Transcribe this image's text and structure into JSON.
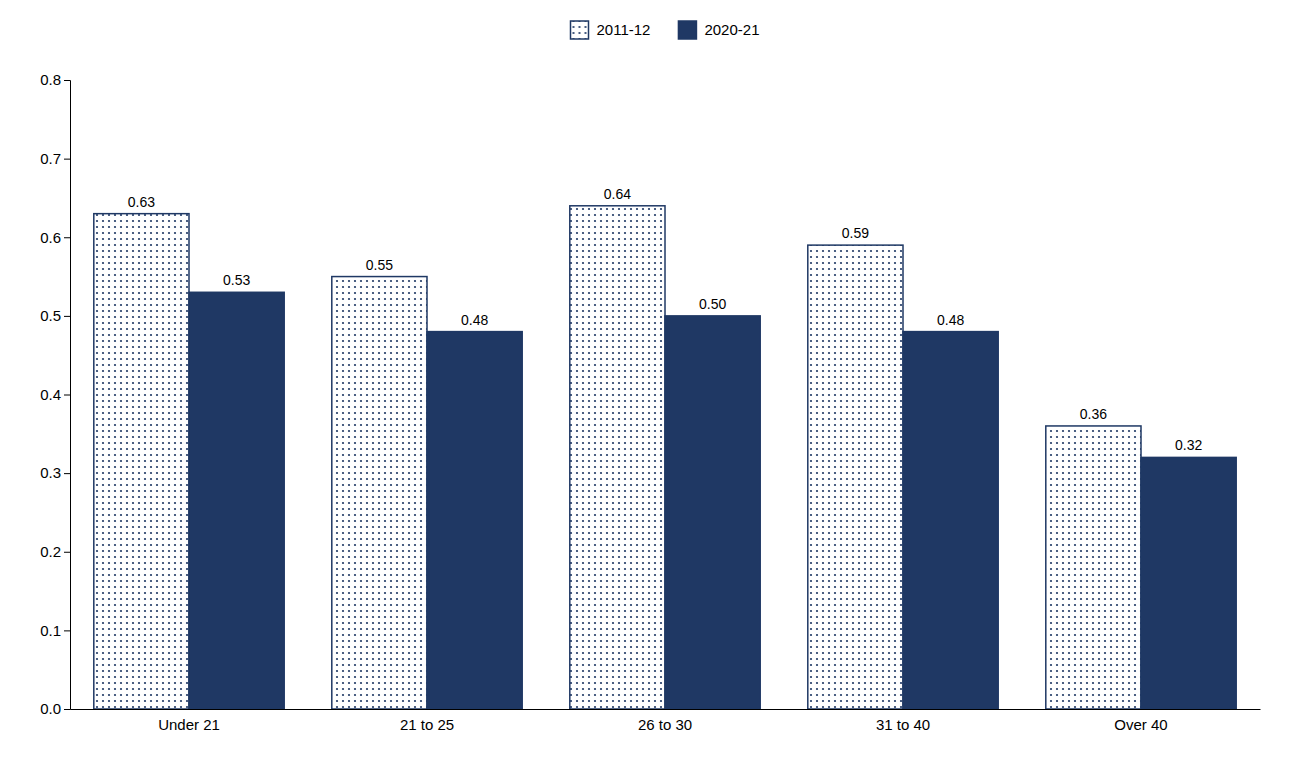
{
  "chart_data": {
    "type": "bar",
    "categories": [
      "Under 21",
      "21 to 25",
      "26 to 30",
      "31 to 40",
      "Over 40"
    ],
    "series": [
      {
        "name": "2011-12",
        "color": "#ffffff",
        "values": [
          0.63,
          0.55,
          0.64,
          0.59,
          0.36
        ],
        "value_labels": [
          "0.63",
          "0.55",
          "0.64",
          "0.59",
          "0.36"
        ]
      },
      {
        "name": "2020-21",
        "color": "#1f3864",
        "values": [
          0.53,
          0.48,
          0.5,
          0.48,
          0.32
        ],
        "value_labels": [
          "0.53",
          "0.48",
          "0.50",
          "0.48",
          "0.32"
        ]
      }
    ],
    "ylim": [
      0.0,
      0.8
    ],
    "yticks": [
      {
        "value": 0.0,
        "label": "0.0"
      },
      0.1,
      0.2,
      0.3,
      0.4,
      0.5,
      0.6,
      0.7,
      0.8
    ],
    "data_labels": true,
    "grid": false,
    "legend": "top"
  }
}
